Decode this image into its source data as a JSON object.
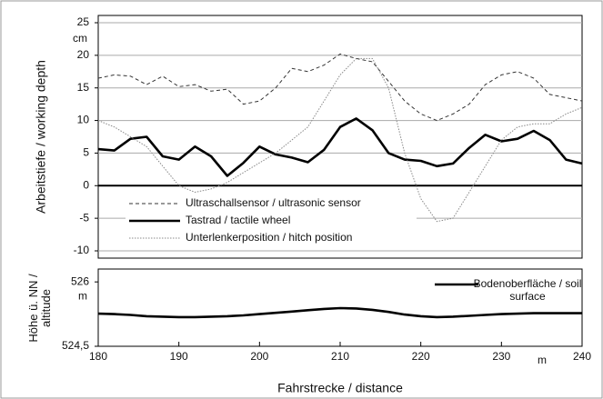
{
  "chart_data": [
    {
      "type": "line",
      "y_label": "Arbeitstiefe / working depth",
      "y_unit": "cm",
      "x": [
        180,
        182,
        184,
        186,
        188,
        190,
        192,
        194,
        196,
        198,
        200,
        202,
        204,
        206,
        208,
        210,
        212,
        214,
        216,
        218,
        220,
        222,
        224,
        226,
        228,
        230,
        232,
        234,
        236,
        238,
        240
      ],
      "xlim": [
        180,
        240
      ],
      "ylim": [
        -10,
        25
      ],
      "yticks": [
        -10,
        -5,
        0,
        5,
        10,
        15,
        20,
        25
      ],
      "grid": true,
      "series": [
        {
          "name": "Ultraschallsensor / ultrasonic sensor",
          "color": "#333333",
          "line_style": "dashed",
          "line_width": 1,
          "values": [
            16.5,
            17,
            16.8,
            15.5,
            16.8,
            15.2,
            15.5,
            14.5,
            14.8,
            12.5,
            13,
            15,
            18,
            17.5,
            18.5,
            20.2,
            19.5,
            19,
            16,
            13,
            11,
            10,
            11,
            12.5,
            15.5,
            17,
            17.5,
            16.5,
            14,
            13.5,
            13
          ]
        },
        {
          "name": "Tastrad / tactile wheel",
          "color": "#000000",
          "line_style": "solid",
          "line_width": 2.6,
          "values": [
            5.6,
            5.4,
            7.2,
            7.5,
            4.5,
            4.0,
            6.0,
            4.5,
            1.5,
            3.5,
            6.0,
            4.8,
            4.3,
            3.6,
            5.5,
            9.0,
            10.3,
            8.5,
            5.0,
            4.0,
            3.8,
            3.0,
            3.4,
            5.8,
            7.8,
            6.8,
            7.2,
            8.4,
            7.0,
            4.0,
            3.4
          ]
        },
        {
          "name": "Unterlenkerposition / hitch position",
          "color": "#888888",
          "line_style": "dotted",
          "line_width": 1,
          "values": [
            10,
            9,
            7.5,
            6,
            3,
            0,
            -1,
            -0.5,
            0.5,
            2,
            3.5,
            5,
            7,
            9,
            13,
            17,
            19.5,
            19.5,
            15,
            5,
            -2,
            -5.5,
            -5,
            -1,
            3,
            7,
            9,
            9.5,
            9.5,
            11,
            12
          ]
        }
      ]
    },
    {
      "type": "line",
      "y_label": "Höhe ü. NN / altitude",
      "y_unit": "m",
      "x_label": "Fahrstrecke / distance",
      "x_unit": "m",
      "x": [
        180,
        182,
        184,
        186,
        188,
        190,
        192,
        194,
        196,
        198,
        200,
        202,
        204,
        206,
        208,
        210,
        212,
        214,
        216,
        218,
        220,
        222,
        224,
        226,
        228,
        230,
        232,
        234,
        236,
        238,
        240
      ],
      "xlim": [
        180,
        240
      ],
      "xticks": [
        180,
        190,
        200,
        210,
        220,
        230,
        240
      ],
      "ylim": [
        524.5,
        526.3
      ],
      "yticks": [
        {
          "value": 524.5,
          "label": "524,5"
        },
        526
      ],
      "series": [
        {
          "name": "Bodenoberfläche / soil surface",
          "color": "#000000",
          "line_style": "solid",
          "line_width": 2.6,
          "values": [
            525.26,
            525.25,
            525.23,
            525.2,
            525.19,
            525.18,
            525.18,
            525.19,
            525.2,
            525.22,
            525.25,
            525.28,
            525.31,
            525.34,
            525.37,
            525.39,
            525.38,
            525.35,
            525.3,
            525.24,
            525.2,
            525.18,
            525.19,
            525.21,
            525.23,
            525.25,
            525.26,
            525.27,
            525.27,
            525.27,
            525.27
          ]
        }
      ]
    }
  ]
}
